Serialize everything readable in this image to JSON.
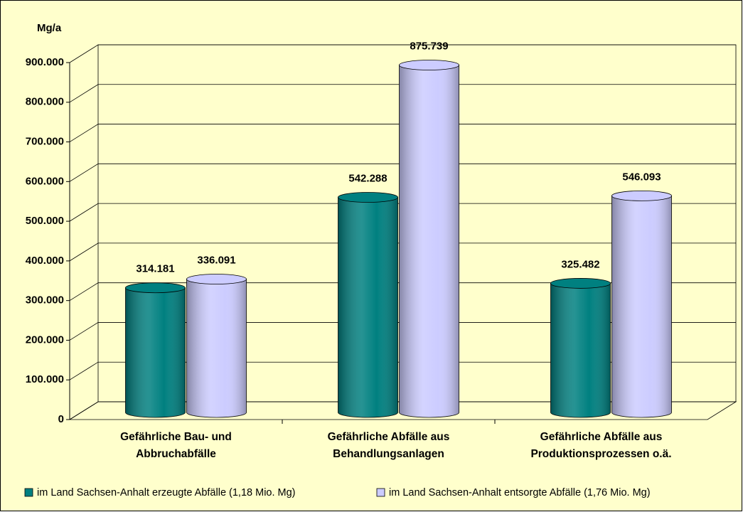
{
  "chart_data": {
    "type": "bar3d",
    "y_label": "Mg/a",
    "categories": [
      "Gefährliche Bau- und\nAbbruchabfälle",
      "Gefährliche Abfälle aus\nBehandlungsanlagen",
      "Gefährliche Abfälle aus\nProduktionsprozessen o.ä."
    ],
    "series": [
      {
        "name": "im Land Sachsen-Anhalt erzeugte Abfälle (1,18 Mio. Mg)",
        "color": "#008080",
        "values": [
          314181,
          542288,
          325482
        ],
        "value_labels": [
          "314.181",
          "542.288",
          "325.482"
        ]
      },
      {
        "name": "im Land Sachsen-Anhalt entsorgte Abfälle (1,76 Mio. Mg)",
        "color": "#ccccff",
        "values": [
          336091,
          875739,
          546093
        ],
        "value_labels": [
          "336.091",
          "875.739",
          "546.093"
        ]
      }
    ],
    "ylim": [
      0,
      900000
    ],
    "yticks": [
      0,
      {
        "value": 100000,
        "label": "100.000"
      },
      {
        "value": 200000,
        "label": "200.000"
      },
      {
        "value": 300000,
        "label": "300.000"
      },
      {
        "value": 400000,
        "label": "400.000"
      },
      {
        "value": 500000,
        "label": "500.000"
      },
      {
        "value": 600000,
        "label": "600.000"
      },
      {
        "value": 700000,
        "label": "700.000"
      },
      {
        "value": 800000,
        "label": "800.000"
      },
      {
        "value": 900000,
        "label": "900.000"
      }
    ],
    "grid": true,
    "legend": "bottom"
  }
}
